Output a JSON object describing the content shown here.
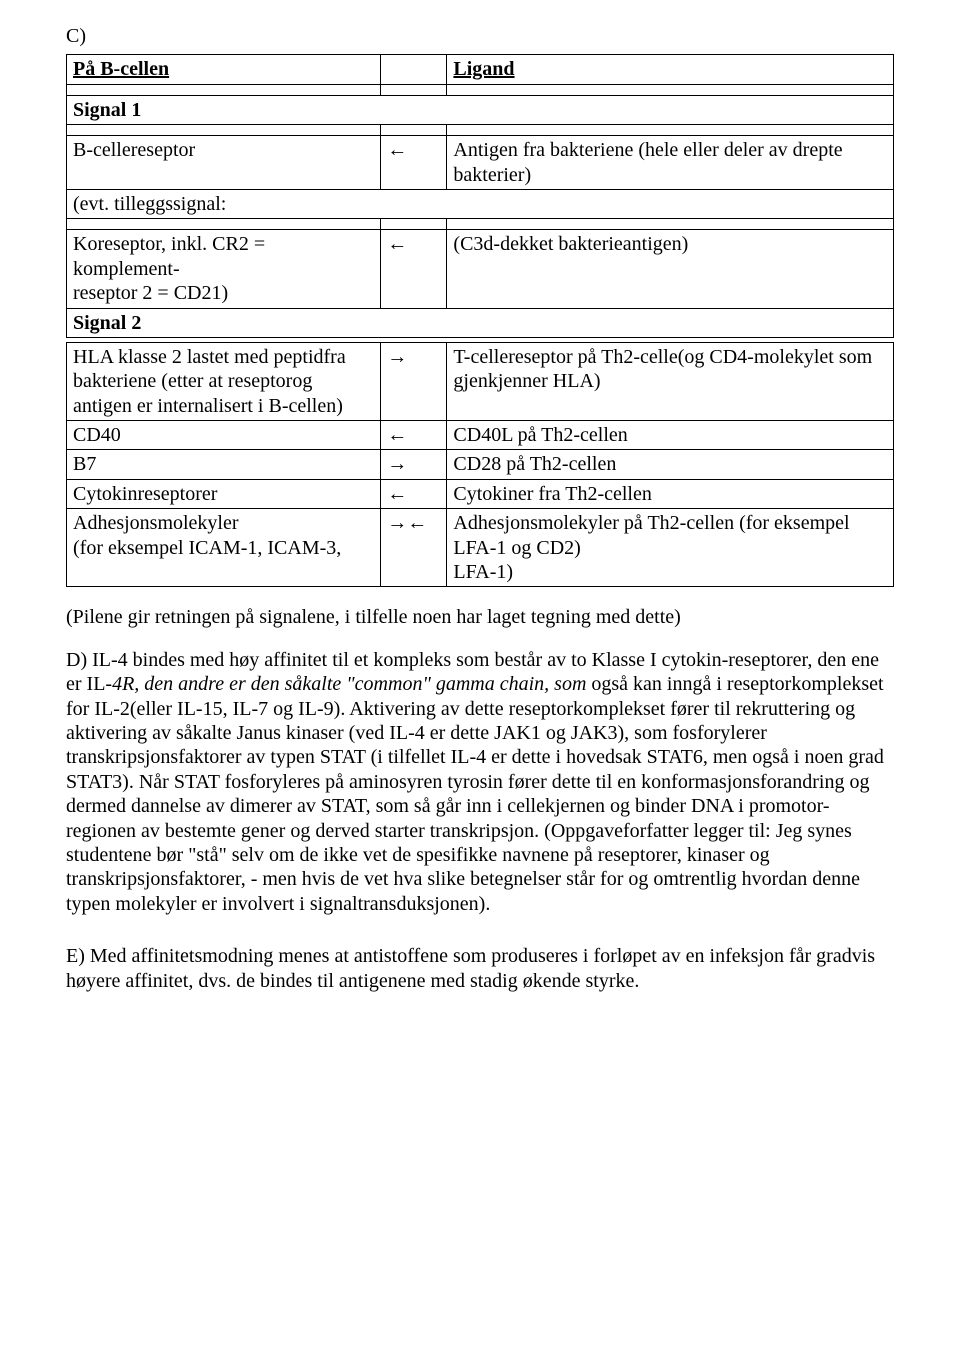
{
  "sectionLabel": "C)",
  "table1": {
    "header": {
      "left": "På B-cellen",
      "right": "Ligand"
    },
    "signal1": "Signal 1",
    "r1": {
      "left": "B-cellereseptor",
      "arrow": "←",
      "right": "Antigen fra bakteriene (hele eller deler av drepte bakterier)"
    },
    "r2": {
      "left": "(evt. tilleggssignal:"
    },
    "r3": {
      "leftA": "Koreseptor, inkl. CR2 = komplement-",
      "leftB": "reseptor 2 = CD21)",
      "arrow": "←",
      "right": "(C3d-dekket bakterieantigen)"
    },
    "signal2": "Signal 2"
  },
  "table2": {
    "r1": {
      "left": "HLA klasse 2 lastet med peptidfra bakteriene (etter at reseptorog antigen er internalisert i B-cellen)",
      "arrow": "→",
      "right": "T-cellereseptor på Th2-celle(og CD4-molekylet som gjenkjenner HLA)"
    },
    "r2": {
      "left": "CD40",
      "arrow": "←",
      "right": "CD40L på Th2-cellen"
    },
    "r3": {
      "left": "B7",
      "arrow": "→",
      "right": "CD28 på Th2-cellen"
    },
    "r4": {
      "left": "Cytokinreseptorer",
      "arrow": "←",
      "right": "Cytokiner fra Th2-cellen"
    },
    "r5": {
      "left": "Adhesjonsmolekyler\n(for eksempel ICAM-1, ICAM-3,",
      "arrow": "→←",
      "right": "Adhesjonsmolekyler på Th2-cellen (for eksempel LFA-1 og CD2)\nLFA-1)"
    }
  },
  "note": "(Pilene gir retningen på signalene, i tilfelle noen har laget tegning med dette)",
  "paraD_pre": "D) IL-4 bindes med høy affinitet til et kompleks som består av to Klasse I cytokin-reseptorer, den ene er IL",
  "paraD_italic": "-4R, den andre er den såkalte \"common\" gamma chain, som",
  "paraD_rest": " også kan inngå i reseptorkomplekset for IL-2(eller IL-15, IL-7 og IL-9). Aktivering av dette reseptorkomplekset fører til rekruttering og aktivering av såkalte Janus kinaser (ved IL-4 er dette JAK1 og JAK3), som fosforylerer transkripsjonsfaktorer av typen STAT (i tilfellet IL-4 er dette i hovedsak STAT6, men også i noen grad STAT3). Når STAT fosforyleres på aminosyren tyrosin fører dette til en konformasjonsforandring og dermed dannelse av  dimerer av STAT, som så går inn i cellekjernen og binder DNA i promotor-regionen av bestemte gener og derved starter transkripsjon. (Oppgaveforfatter legger til: Jeg synes studentene bør \"stå\" selv om de ikke vet de spesifikke navnene på reseptorer, kinaser og transkripsjonsfaktorer, - men hvis de vet hva slike betegnelser står for og omtrentlig hvordan denne typen molekyler er involvert i signaltransduksjonen).",
  "paraE": "E) Med affinitetsmodning menes at antistoffene som produseres i forløpet av en infeksjon får gradvis høyere affinitet, dvs. de bindes til antigenene med stadig økende styrke."
}
